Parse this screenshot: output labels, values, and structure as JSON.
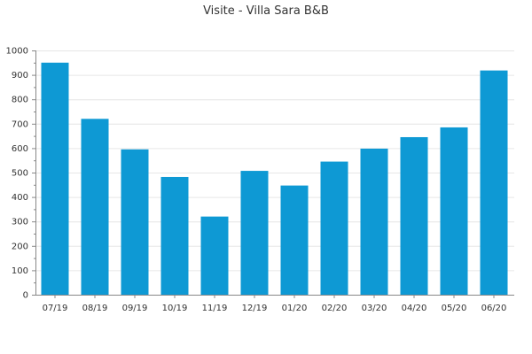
{
  "chart_data": {
    "type": "bar",
    "title": "Visite - Villa Sara B&B",
    "xlabel": "",
    "ylabel": "",
    "categories": [
      "07/19",
      "08/19",
      "09/19",
      "10/19",
      "11/19",
      "12/19",
      "01/20",
      "02/20",
      "03/20",
      "04/20",
      "05/20",
      "06/20"
    ],
    "values": [
      950,
      720,
      595,
      482,
      320,
      507,
      447,
      545,
      598,
      645,
      685,
      918
    ],
    "ylim": [
      0,
      1000
    ],
    "yticks": [
      0,
      100,
      200,
      300,
      400,
      500,
      600,
      700,
      800,
      900,
      1000
    ],
    "grid": true,
    "legend": "none",
    "colors": {
      "bar": "#0e99d4",
      "grid": "#e6e6e6",
      "axis": "#888888",
      "text": "#333333"
    }
  }
}
